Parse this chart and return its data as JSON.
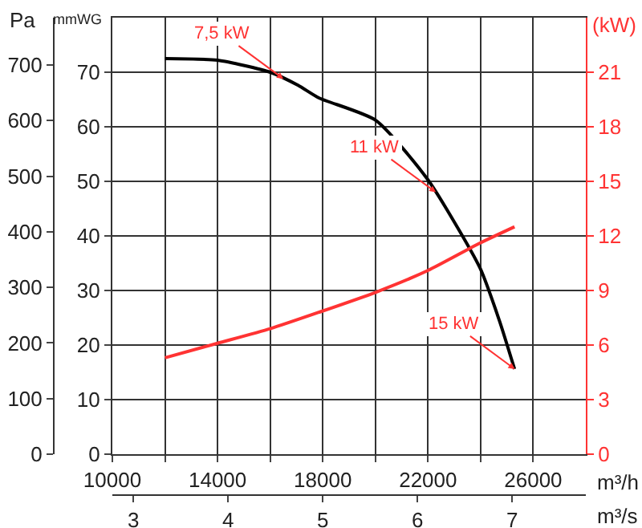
{
  "chart_data": {
    "type": "line",
    "xlabel": "m³/h",
    "ylabel": "mmWG",
    "y2label": "(kW)",
    "y3label": "Pa",
    "x2label": "m³/s",
    "x": [
      12000,
      14000,
      16000,
      17060,
      17850,
      20010,
      21980,
      23970,
      24720,
      25290
    ],
    "series": [
      {
        "color": "#000000",
        "axis": "y",
        "values": [
          72.5,
          72.2,
          70,
          67.6,
          65.3,
          61.2,
          50.4,
          34.2,
          24.4,
          15.6
        ]
      },
      {
        "color": "#ff3333",
        "axis": "y2",
        "x": [
          12000,
          14000,
          16000,
          17850,
          20010,
          22000,
          23970,
          25290
        ],
        "values": [
          5.3,
          6.1,
          6.9,
          7.8,
          8.9,
          10.1,
          11.6,
          12.5
        ]
      }
    ],
    "xlim": [
      10000,
      28000
    ],
    "xticks": [
      10000,
      {
        "value": 12000,
        "label": null
      },
      14000,
      {
        "value": 16000,
        "label": null
      },
      18000,
      {
        "value": 20000,
        "label": null
      },
      22000,
      {
        "value": 24000,
        "label": null
      },
      26000
    ],
    "x2lim": [
      2.778,
      7.778
    ],
    "x2ticks": [
      3,
      4,
      5,
      6,
      7
    ],
    "ylim": [
      0,
      80
    ],
    "yticks": [
      0,
      10,
      20,
      30,
      40,
      50,
      60,
      70
    ],
    "y2lim": [
      0,
      24
    ],
    "y2ticks": [
      0,
      3,
      6,
      9,
      12,
      15,
      18,
      21
    ],
    "y3lim": [
      0,
      785
    ],
    "y3ticks": [
      0,
      100,
      200,
      300,
      400,
      500,
      600,
      700
    ],
    "grid": true,
    "marker": "none",
    "line_style": "solid",
    "annotations": [
      {
        "text": "7,5 kW",
        "x": 16500,
        "y": 68.8
      },
      {
        "text": "11 kW",
        "x": 22300,
        "y": 48
      },
      {
        "text": "15 kW",
        "x": 25300,
        "y": 15.6
      }
    ]
  }
}
